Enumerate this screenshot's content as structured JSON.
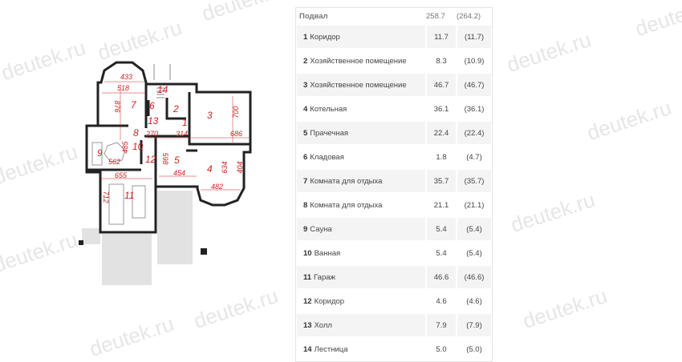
{
  "watermark": "deutek.ru",
  "table": {
    "header": {
      "label": "Подвал",
      "area": "258.7",
      "total": "(264.2)"
    },
    "rows": [
      {
        "num": "1",
        "name": "Коридор",
        "area": "11.7",
        "total": "(11.7)"
      },
      {
        "num": "2",
        "name": "Хозяйственное помещение",
        "area": "8.3",
        "total": "(10.9)"
      },
      {
        "num": "3",
        "name": "Хозяйственное помещение",
        "area": "46.7",
        "total": "(46.7)"
      },
      {
        "num": "4",
        "name": "Котельная",
        "area": "36.1",
        "total": "(36.1)"
      },
      {
        "num": "5",
        "name": "Прачечная",
        "area": "22.4",
        "total": "(22.4)"
      },
      {
        "num": "6",
        "name": "Кладовая",
        "area": "1.8",
        "total": "(4.7)"
      },
      {
        "num": "7",
        "name": "Комната для отдыха",
        "area": "35.7",
        "total": "(35.7)"
      },
      {
        "num": "8",
        "name": "Комната для отдыха",
        "area": "21.1",
        "total": "(21.1)"
      },
      {
        "num": "9",
        "name": "Сауна",
        "area": "5.4",
        "total": "(5.4)"
      },
      {
        "num": "10",
        "name": "Ванная",
        "area": "5.4",
        "total": "(5.4)"
      },
      {
        "num": "11",
        "name": "Гараж",
        "area": "46.6",
        "total": "(46.6)"
      },
      {
        "num": "12",
        "name": "Коридор",
        "area": "4.6",
        "total": "(4.6)"
      },
      {
        "num": "13",
        "name": "Холл",
        "area": "7.9",
        "total": "(7.9)"
      },
      {
        "num": "14",
        "name": "Лестница",
        "area": "5.0",
        "total": "(5.0)"
      }
    ]
  },
  "plan": {
    "room_numbers": [
      "1",
      "2",
      "3",
      "4",
      "5",
      "6",
      "7",
      "8",
      "9",
      "10",
      "11",
      "12",
      "13",
      "14"
    ],
    "dimensions": [
      "433",
      "518",
      "876",
      "700",
      "270",
      "314",
      "686",
      "485",
      "562",
      "598",
      "454",
      "634",
      "404",
      "482",
      "655",
      "712"
    ]
  }
}
